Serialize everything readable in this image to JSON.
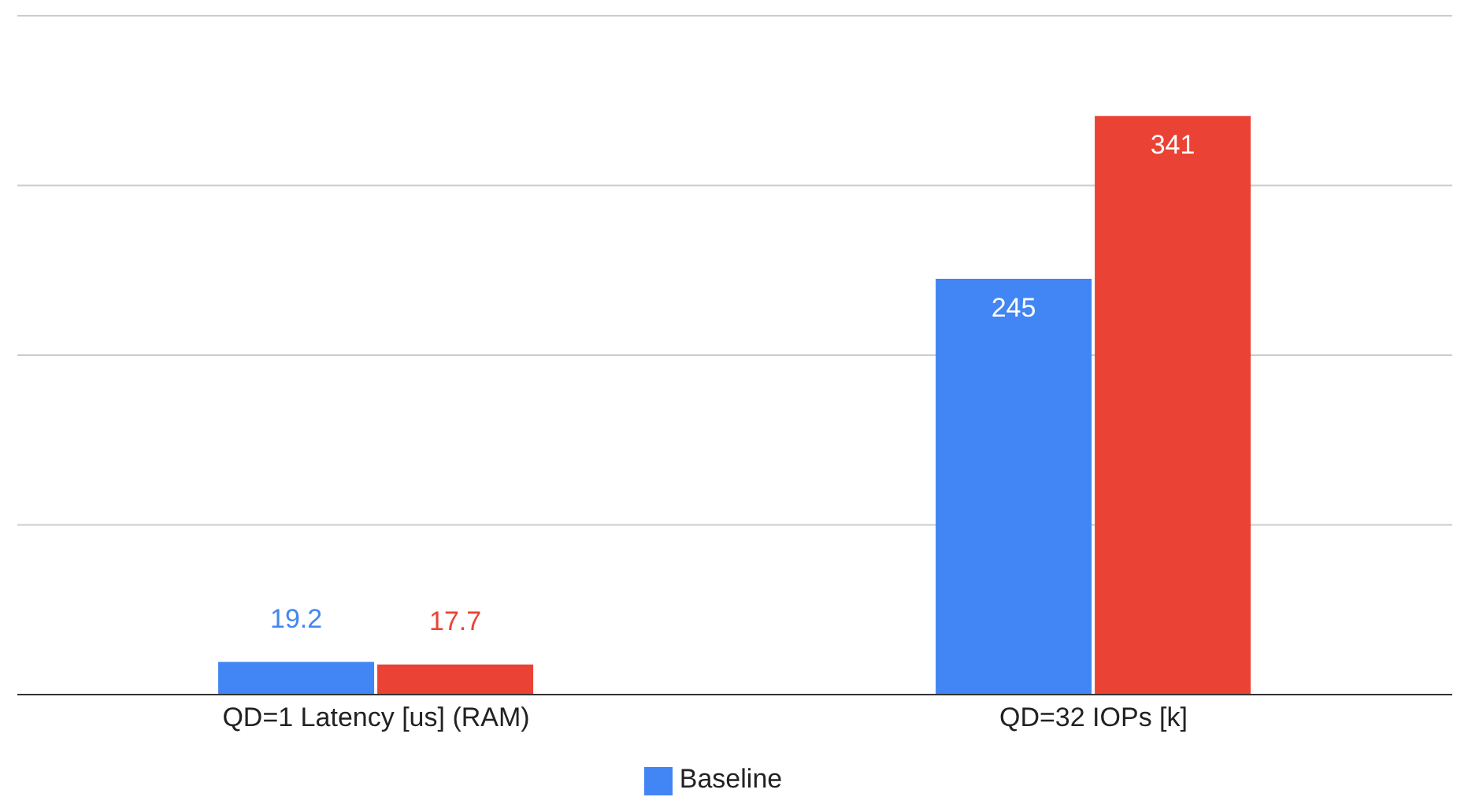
{
  "chart_data": {
    "type": "bar",
    "categories": [
      "QD=1 Latency [us] (RAM)",
      "QD=32 IOPs [k]"
    ],
    "series": [
      {
        "name": "Baseline",
        "color": "#4285f4",
        "values": [
          19.2,
          245
        ]
      },
      {
        "color": "#ea4335",
        "values": [
          17.7,
          341
        ]
      }
    ],
    "ylim": [
      0,
      400
    ],
    "yticks": [
      {
        "value": 0,
        "label": null
      },
      {
        "value": 100,
        "label": null
      },
      {
        "value": 200,
        "label": null
      },
      {
        "value": 300,
        "label": null
      },
      {
        "value": 400,
        "label": null
      }
    ],
    "tick_labels": "x",
    "grid": "y",
    "legend": "bottom",
    "data_labels": true
  }
}
